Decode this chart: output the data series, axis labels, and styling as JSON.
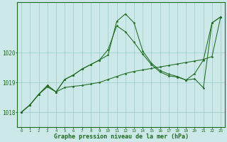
{
  "background_color": "#cce8e8",
  "grid_color": "#99cccc",
  "line_color": "#1f6b1f",
  "title": "Graphe pression niveau de la mer (hPa)",
  "xlim": [
    -0.5,
    23.5
  ],
  "ylim": [
    1017.5,
    1021.7
  ],
  "x_ticks": [
    0,
    1,
    2,
    3,
    4,
    5,
    6,
    7,
    8,
    9,
    10,
    11,
    12,
    13,
    14,
    15,
    16,
    17,
    18,
    19,
    20,
    21,
    22,
    23
  ],
  "y_ticks": [
    1018,
    1019,
    1020
  ],
  "series": [
    [
      1018.0,
      1018.25,
      1018.6,
      1018.85,
      1018.68,
      1018.83,
      1018.87,
      1018.9,
      1018.95,
      1019.0,
      1019.1,
      1019.2,
      1019.3,
      1019.37,
      1019.42,
      1019.47,
      1019.52,
      1019.57,
      1019.62,
      1019.67,
      1019.72,
      1019.77,
      1019.87,
      1021.2
    ],
    [
      1018.0,
      1018.25,
      1018.6,
      1018.9,
      1018.68,
      1019.1,
      1019.25,
      1019.45,
      1019.6,
      1019.75,
      1020.1,
      1020.9,
      1020.7,
      1020.35,
      1019.95,
      1019.6,
      1019.35,
      1019.22,
      1019.18,
      1019.08,
      1019.3,
      1019.75,
      1021.0,
      1021.2
    ],
    [
      1018.0,
      1018.25,
      1018.6,
      1018.9,
      1018.68,
      1019.1,
      1019.25,
      1019.45,
      1019.6,
      1019.75,
      1019.92,
      1021.05,
      1021.3,
      1021.0,
      1020.05,
      1019.65,
      1019.4,
      1019.28,
      1019.2,
      1019.08,
      1019.12,
      1018.82,
      1021.0,
      1021.2
    ]
  ]
}
